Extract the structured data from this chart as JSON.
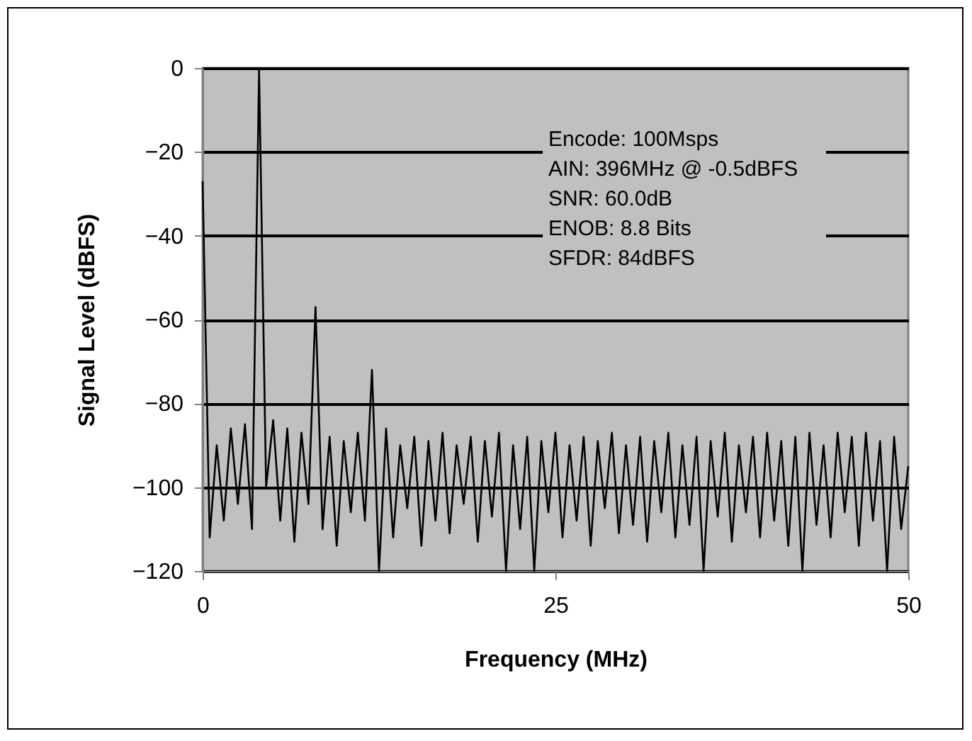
{
  "chart_data": {
    "type": "line",
    "xlabel": "Frequency (MHz)",
    "ylabel": "Signal Level (dBFS)",
    "annotations": [
      "Encode: 100Msps",
      "AIN: 396MHz @ -0.5dBFS",
      "SNR: 60.0dB",
      "ENOB: 8.8 Bits",
      "SFDR: 84dBFS"
    ],
    "x": [
      0,
      0.5,
      1,
      1.5,
      2,
      2.5,
      3,
      3.5,
      4,
      4.5,
      5,
      5.5,
      6,
      6.5,
      7,
      7.5,
      8,
      8.5,
      9,
      9.5,
      10,
      10.5,
      11,
      11.5,
      12,
      12.5,
      13,
      13.5,
      14,
      14.5,
      15,
      15.5,
      16,
      16.5,
      17,
      17.5,
      18,
      18.5,
      19,
      19.5,
      20,
      20.5,
      21,
      21.5,
      22,
      22.5,
      23,
      23.5,
      24,
      24.5,
      25,
      25.5,
      26,
      26.5,
      27,
      27.5,
      28,
      28.5,
      29,
      29.5,
      30,
      30.5,
      31,
      31.5,
      32,
      32.5,
      33,
      33.5,
      34,
      34.5,
      35,
      35.5,
      36,
      36.5,
      37,
      37.5,
      38,
      38.5,
      39,
      39.5,
      40,
      40.5,
      41,
      41.5,
      42,
      42.5,
      43,
      43.5,
      44,
      44.5,
      45,
      45.5,
      46,
      46.5,
      47,
      47.5,
      48,
      48.5,
      49,
      49.5,
      50
    ],
    "series": [
      {
        "color": "#000000",
        "values": [
          -27,
          -112,
          -90,
          -108,
          -86,
          -104,
          -85,
          -110,
          -0.5,
          -100,
          -84,
          -108,
          -86,
          -113,
          -87,
          -104,
          -57,
          -110,
          -88,
          -114,
          -89,
          -106,
          -87,
          -108,
          -72,
          -120,
          -86,
          -112,
          -90,
          -105,
          -88,
          -114,
          -89,
          -108,
          -87,
          -111,
          -90,
          -104,
          -88,
          -113,
          -89,
          -107,
          -87,
          -120,
          -90,
          -110,
          -88,
          -120,
          -89,
          -106,
          -87,
          -112,
          -90,
          -108,
          -88,
          -114,
          -89,
          -105,
          -87,
          -111,
          -90,
          -109,
          -88,
          -113,
          -89,
          -106,
          -87,
          -112,
          -90,
          -109,
          -88,
          -120,
          -89,
          -107,
          -87,
          -113,
          -90,
          -106,
          -88,
          -112,
          -87,
          -108,
          -89,
          -114,
          -88,
          -120,
          -87,
          -109,
          -90,
          -112,
          -87,
          -106,
          -88,
          -114,
          -87,
          -108,
          -89,
          -120,
          -88,
          -110,
          -95
        ]
      }
    ],
    "xlim": [
      0,
      50
    ],
    "xticks": [
      0,
      25,
      50
    ],
    "ylim": [
      -120,
      0
    ],
    "yticks": [
      -120,
      -100,
      -80,
      -60,
      -40,
      -20,
      0
    ],
    "grid": "y",
    "legend": false,
    "marker": "none",
    "line_style": "solid"
  }
}
